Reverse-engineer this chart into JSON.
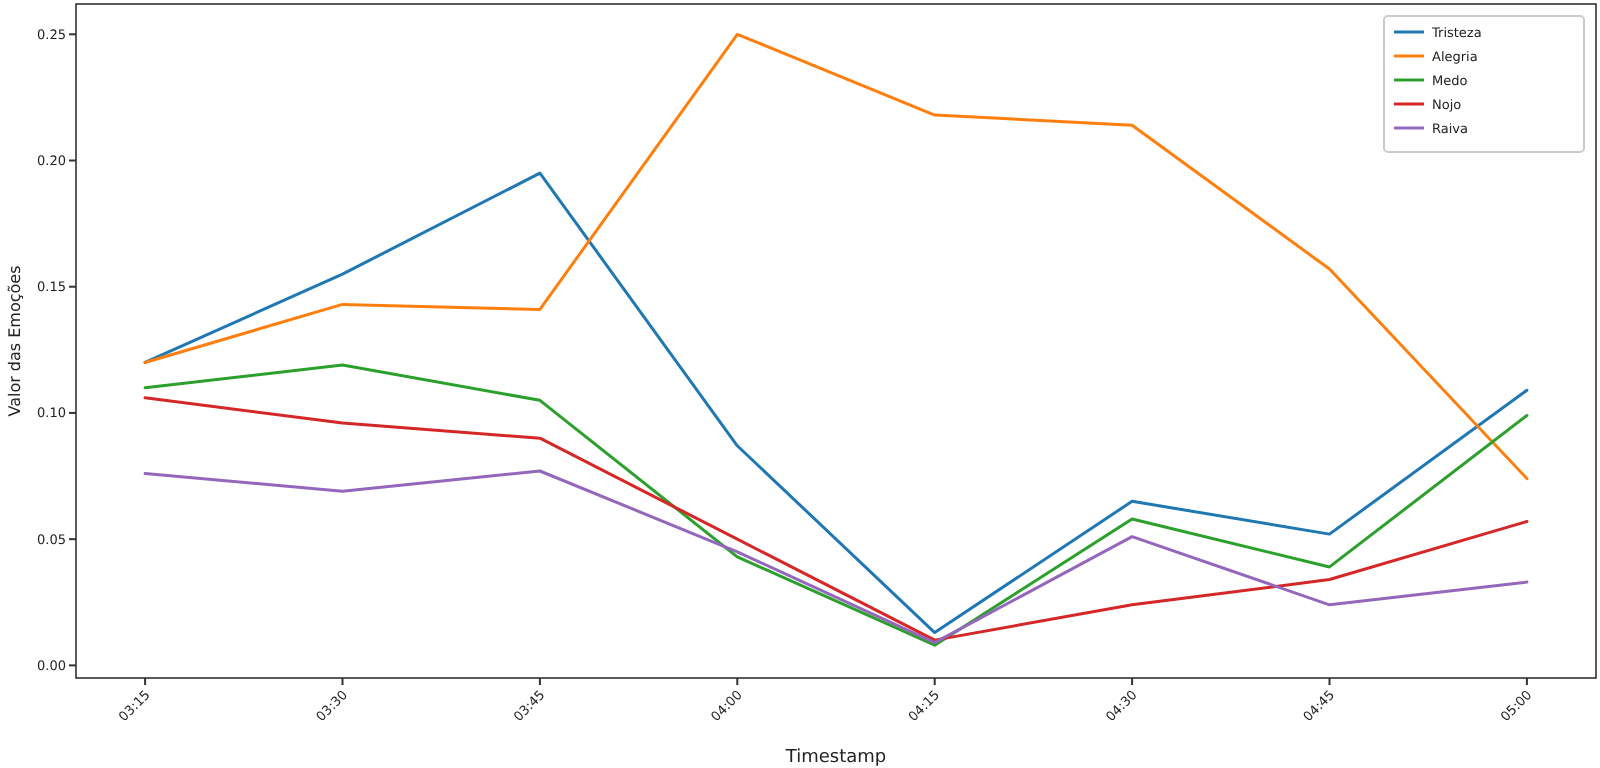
{
  "chart_data": {
    "type": "line",
    "xlabel": "Timestamp",
    "ylabel": "Valor das Emoções",
    "categories": [
      "03:15",
      "03:30",
      "03:45",
      "04:00",
      "04:15",
      "04:30",
      "04:45",
      "05:00"
    ],
    "ylim": [
      -0.005,
      0.262
    ],
    "yticks": [
      {
        "value": 0,
        "label": "0.00"
      },
      {
        "value": 0.05,
        "label": "0.05"
      },
      {
        "value": 0.1,
        "label": "0.10"
      },
      {
        "value": 0.15,
        "label": "0.15"
      },
      {
        "value": 0.2,
        "label": "0.20"
      },
      {
        "value": 0.25,
        "label": "0.25"
      }
    ],
    "legend": "top right",
    "grid": false,
    "marker": "none",
    "line_style": "solid",
    "series": [
      {
        "name": "Tristeza",
        "color": "#1f77b4",
        "values": [
          0.12,
          0.155,
          0.195,
          0.087,
          0.013,
          0.065,
          0.052,
          0.109
        ]
      },
      {
        "name": "Alegria",
        "color": "#ff7f0e",
        "values": [
          0.12,
          0.143,
          0.141,
          0.25,
          0.218,
          0.214,
          0.157,
          0.074
        ]
      },
      {
        "name": "Medo",
        "color": "#2ca02c",
        "values": [
          0.11,
          0.119,
          0.105,
          0.043,
          0.008,
          0.058,
          0.039,
          0.099
        ]
      },
      {
        "name": "Nojo",
        "color": "#d62728",
        "values": [
          0.106,
          0.096,
          0.09,
          0.05,
          0.01,
          0.024,
          0.034,
          0.057
        ]
      },
      {
        "name": "Raiva",
        "color": "#9467bd",
        "values": [
          0.076,
          0.069,
          0.077,
          0.045,
          0.009,
          0.051,
          0.024,
          0.033
        ]
      }
    ]
  }
}
